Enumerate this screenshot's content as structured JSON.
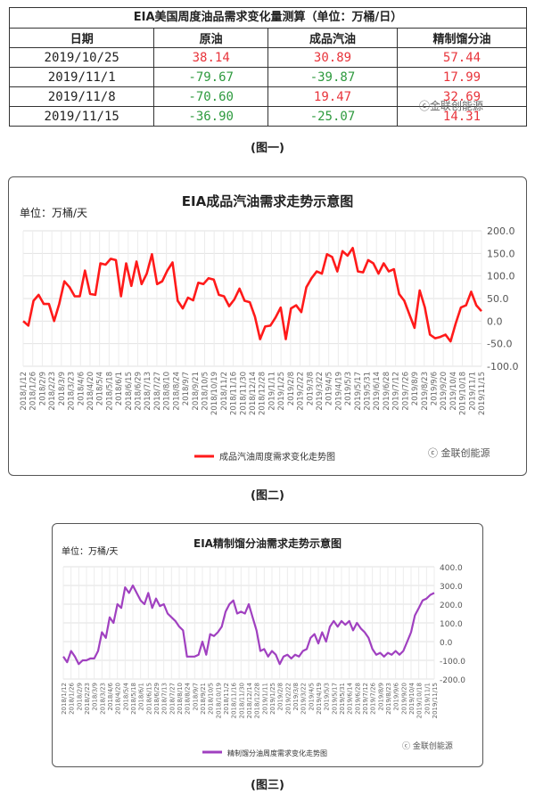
{
  "table": {
    "title": "EIA美国周度油品需求变化量测算（单位：万桶/日）",
    "headers": [
      "日期",
      "原油",
      "成品汽油",
      "精制馏分油"
    ],
    "rows": [
      [
        "2019/10/25",
        "38.14",
        "30.89",
        "57.44"
      ],
      [
        "2019/11/1",
        "-79.67",
        "-39.87",
        "17.99"
      ],
      [
        "2019/11/8",
        "-70.60",
        "19.47",
        "32.69"
      ],
      [
        "2019/11/15",
        "-36.90",
        "-25.07",
        "14.31"
      ]
    ],
    "watermark": "金联创能源",
    "caption": "(图一)"
  },
  "chart2": {
    "caption": "(图二)",
    "watermark": "金联创能源"
  },
  "chart3": {
    "caption": "(图三)",
    "watermark": "金联创能源"
  },
  "colors": {
    "gasoline": "#ff1a1a",
    "distillate": "#a040c0",
    "positive": "#e8343b",
    "negative": "#2e9a3e"
  },
  "chart_data": [
    {
      "type": "line",
      "title": "EIA成品汽油需求走势示意图",
      "unit_label": "单位：万桶/天",
      "ylim": [
        -100,
        200
      ],
      "yticks": [
        "200.0",
        "150.0",
        "100.0",
        "50.0",
        "0.0",
        "-50.0",
        "-100.0"
      ],
      "grid": true,
      "legend_position": "bottom",
      "x_ticks": [
        "2018/1/12",
        "2018/1/26",
        "2018/2/9",
        "2018/2/23",
        "2018/3/9",
        "2018/3/23",
        "2018/4/6",
        "2018/4/20",
        "2018/5/4",
        "2018/5/18",
        "2018/6/1",
        "2018/6/15",
        "2018/6/29",
        "2018/7/13",
        "2018/7/27",
        "2018/8/10",
        "2018/8/24",
        "2018/9/7",
        "2018/9/21",
        "2018/10/5",
        "2018/10/19",
        "2018/11/2",
        "2018/11/16",
        "2018/11/30",
        "2018/12/14",
        "2018/12/28",
        "2019/1/11",
        "2019/1/25",
        "2019/2/8",
        "2019/2/22",
        "2019/3/8",
        "2019/3/22",
        "2019/4/5",
        "2019/4/19",
        "2019/5/3",
        "2019/5/17",
        "2019/5/31",
        "2019/6/14",
        "2019/6/28",
        "2019/7/12",
        "2019/7/26",
        "2019/8/9",
        "2019/8/23",
        "2019/9/6",
        "2019/9/20",
        "2019/10/4",
        "2019/10/18",
        "2019/11/1",
        "2019/11/15"
      ],
      "series": [
        {
          "name": "成品汽油周度需求变化走势图",
          "values": [
            0,
            -10,
            45,
            58,
            38,
            38,
            0,
            38,
            88,
            75,
            55,
            55,
            112,
            60,
            58,
            128,
            125,
            138,
            135,
            55,
            128,
            78,
            132,
            82,
            105,
            148,
            82,
            88,
            112,
            130,
            45,
            28,
            52,
            46,
            85,
            82,
            95,
            92,
            58,
            55,
            33,
            48,
            72,
            45,
            42,
            10,
            -40,
            -12,
            -10,
            8,
            30,
            -40,
            28,
            35,
            20,
            75,
            95,
            110,
            105,
            148,
            142,
            110,
            155,
            145,
            162,
            110,
            108,
            135,
            128,
            105,
            128,
            110,
            115,
            60,
            45,
            15,
            -15,
            68,
            30,
            -30,
            -38,
            -35,
            -30,
            -45,
            -5,
            30,
            35,
            65,
            35,
            22
          ]
        }
      ]
    },
    {
      "type": "line",
      "title": "EIA精制馏分油需求走势示意图",
      "unit_label": "单位：万桶/天",
      "ylim": [
        -200,
        400
      ],
      "yticks": [
        "400.0",
        "300.0",
        "200.0",
        "100.0",
        "0.0",
        "-100.0",
        "-200.0"
      ],
      "grid": true,
      "legend_position": "bottom",
      "x_ticks": [
        "2018/1/12",
        "2018/1/26",
        "2018/2/9",
        "2018/2/23",
        "2018/3/9",
        "2018/3/23",
        "2018/4/6",
        "2018/4/20",
        "2018/5/4",
        "2018/5/18",
        "2018/6/1",
        "2018/6/15",
        "2018/6/29",
        "2018/7/13",
        "2018/7/27",
        "2018/8/10",
        "2018/8/24",
        "2018/9/7",
        "2018/9/21",
        "2018/10/5",
        "2018/10/19",
        "2018/11/2",
        "2018/11/16",
        "2018/11/30",
        "2018/12/14",
        "2018/12/28",
        "2019/1/11",
        "2019/1/25",
        "2019/2/8",
        "2019/2/22",
        "2019/3/8",
        "2019/3/22",
        "2019/4/5",
        "2019/4/19",
        "2019/5/3",
        "2019/5/17",
        "2019/5/31",
        "2019/6/14",
        "2019/6/28",
        "2019/7/12",
        "2019/7/26",
        "2019/8/9",
        "2019/8/23",
        "2019/9/6",
        "2019/9/20",
        "2019/10/4",
        "2019/10/18",
        "2019/11/1",
        "2019/11/15"
      ],
      "series": [
        {
          "name": "精制馏分油周度需求变化走势图",
          "values": [
            -80,
            -110,
            -50,
            -80,
            -120,
            -100,
            -100,
            -90,
            -90,
            -50,
            50,
            20,
            130,
            100,
            200,
            180,
            290,
            260,
            300,
            260,
            220,
            200,
            260,
            180,
            230,
            190,
            200,
            150,
            130,
            110,
            80,
            60,
            -80,
            -80,
            -80,
            -70,
            0,
            -70,
            40,
            30,
            50,
            80,
            160,
            200,
            220,
            150,
            160,
            150,
            200,
            130,
            60,
            -50,
            -40,
            -80,
            -50,
            -70,
            -120,
            -80,
            -70,
            -90,
            -70,
            -80,
            -50,
            -40,
            20,
            40,
            -10,
            50,
            0,
            80,
            110,
            80,
            110,
            90,
            110,
            60,
            100,
            70,
            50,
            20,
            -40,
            -70,
            -60,
            -80,
            -60,
            -70,
            -50,
            -70,
            -50,
            0,
            50,
            140,
            180,
            220,
            230,
            250,
            260
          ]
        }
      ]
    }
  ]
}
